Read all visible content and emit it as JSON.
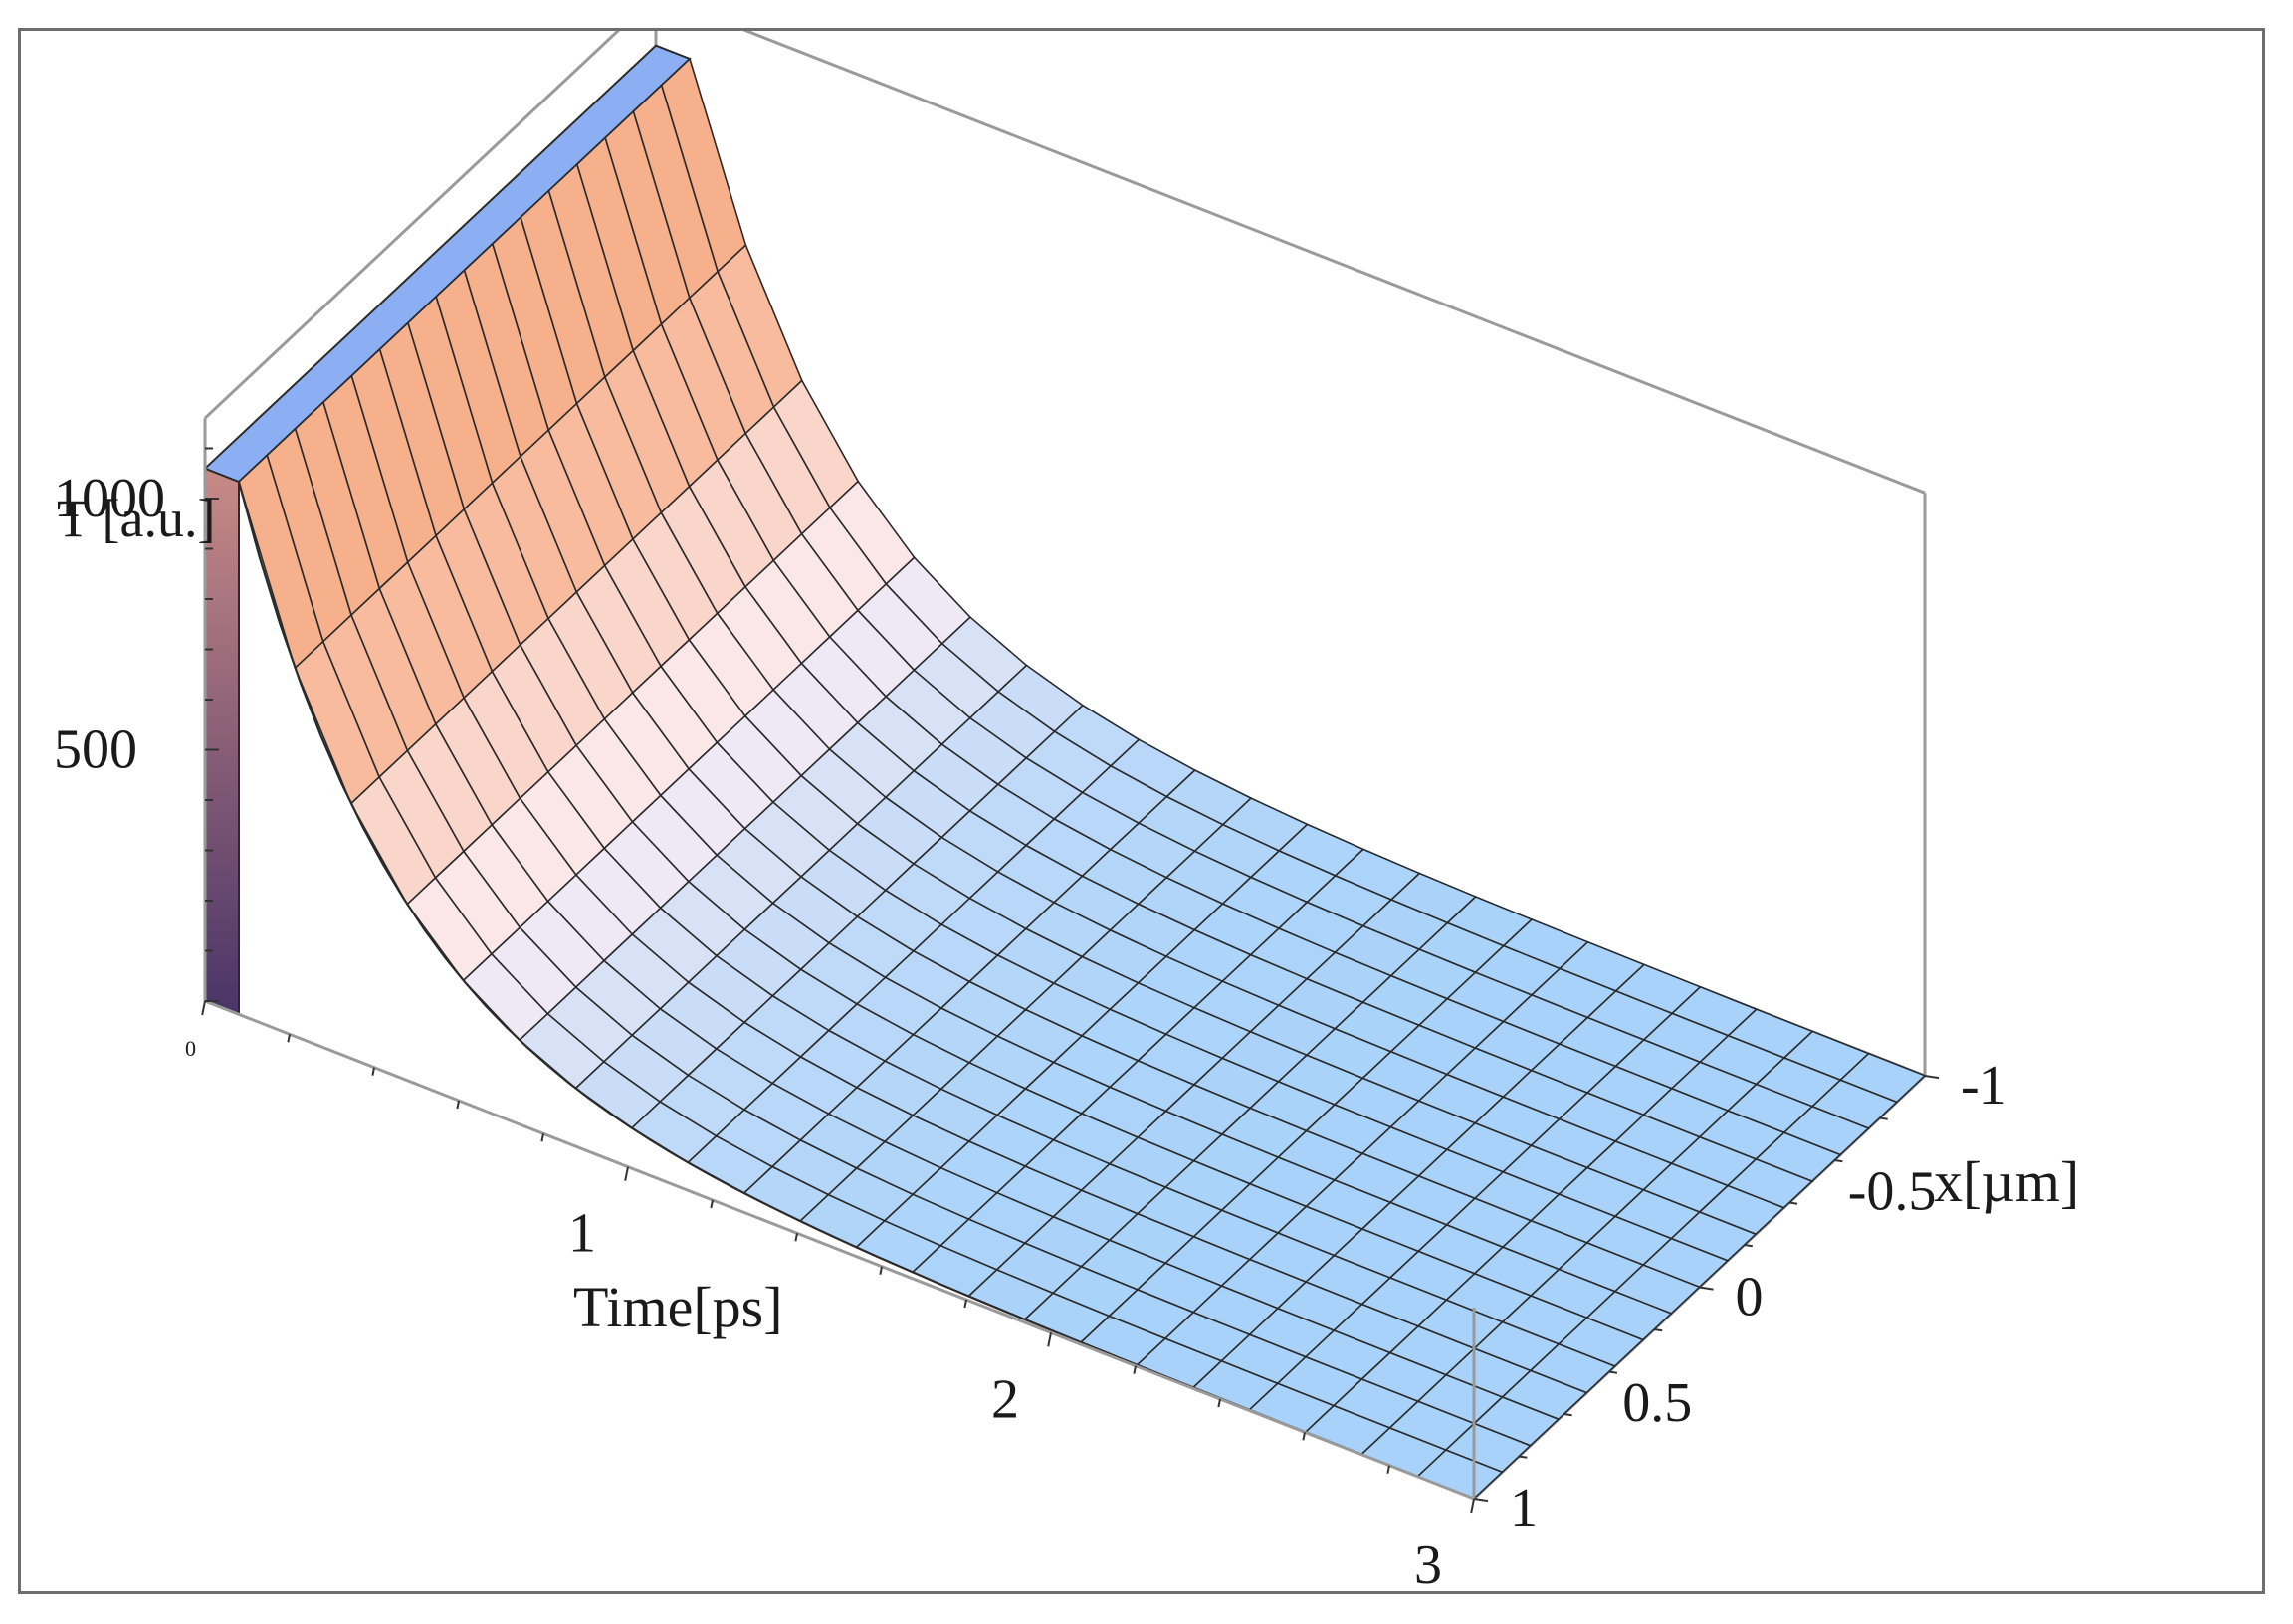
{
  "chart_data": {
    "type": "surface3d",
    "zlabel": "T [a.u.]",
    "xlabel": "Time[ps]",
    "ylabel": "x[µm]",
    "time_range": [
      0,
      3
    ],
    "x_range": [
      -1,
      1
    ],
    "z_range": [
      0,
      1000
    ],
    "time_ticks": [
      {
        "v": 0,
        "label": "0"
      },
      {
        "v": 1,
        "label": "1"
      },
      {
        "v": 2,
        "label": "2"
      },
      {
        "v": 3,
        "label": "3"
      }
    ],
    "x_ticks": [
      {
        "v": -1,
        "label": "-1"
      },
      {
        "v": -0.5,
        "label": "-0.5"
      },
      {
        "v": 0,
        "label": "0"
      },
      {
        "v": 0.5,
        "label": "0.5"
      },
      {
        "v": 1,
        "label": "1"
      }
    ],
    "z_ticks": [
      {
        "v": 500,
        "label": "500"
      },
      {
        "v": 1000,
        "label": "1000"
      }
    ],
    "surface": {
      "pulse_end_time": 0.08,
      "peak_temperature": 1060,
      "decay_time_constant": 0.36,
      "baseline_temperature": 0,
      "mesh_time_lines": 22,
      "mesh_x_lines": 16,
      "profile_samples": [
        {
          "time": 0.0,
          "T": 1060
        },
        {
          "time": 0.08,
          "T": 1060
        },
        {
          "time": 0.25,
          "T": 660
        },
        {
          "time": 0.5,
          "T": 340
        },
        {
          "time": 1.0,
          "T": 75
        },
        {
          "time": 1.5,
          "T": 18
        },
        {
          "time": 2.0,
          "T": 4
        },
        {
          "time": 3.0,
          "T": 0
        }
      ]
    },
    "colors": {
      "hot": "#f7b08c",
      "mid": "#fbeef4",
      "cool": "#a8d2fa",
      "top_face": "#8caef2",
      "side_face_top": "#c88a86",
      "side_face_bottom": "#4a3468",
      "mesh": "#2a2a2a",
      "box": "#9a9a9a"
    }
  }
}
